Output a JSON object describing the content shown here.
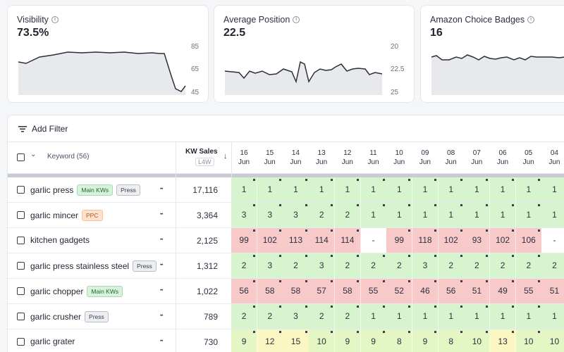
{
  "metrics": [
    {
      "title": "Visibility",
      "value": "73.5%",
      "axis": [
        "85",
        "65",
        "45"
      ]
    },
    {
      "title": "Average Position",
      "value": "22.5",
      "axis": [
        "20",
        "22.5",
        "25"
      ]
    },
    {
      "title": "Amazon Choice Badges",
      "value": "16",
      "axis": []
    }
  ],
  "toolbar": {
    "add_filter_label": "Add Filter"
  },
  "table": {
    "keyword_header": "Keyword (56)",
    "sales_header": "KW Sales",
    "sales_period": "L4W",
    "dates": [
      {
        "day": "16",
        "month": "Jun"
      },
      {
        "day": "15",
        "month": "Jun"
      },
      {
        "day": "14",
        "month": "Jun"
      },
      {
        "day": "13",
        "month": "Jun"
      },
      {
        "day": "12",
        "month": "Jun"
      },
      {
        "day": "11",
        "month": "Jun"
      },
      {
        "day": "10",
        "month": "Jun"
      },
      {
        "day": "09",
        "month": "Jun"
      },
      {
        "day": "08",
        "month": "Jun"
      },
      {
        "day": "07",
        "month": "Jun"
      },
      {
        "day": "06",
        "month": "Jun"
      },
      {
        "day": "05",
        "month": "Jun"
      },
      {
        "day": "04",
        "month": "Jun"
      }
    ],
    "rows": [
      {
        "keyword": "garlic press",
        "tags": [
          {
            "label": "Main KWs",
            "kind": "main"
          },
          {
            "label": "Press",
            "kind": "press"
          }
        ],
        "sales": "17,116",
        "values": [
          "1",
          "1",
          "1",
          "1",
          "1",
          "1",
          "1",
          "1",
          "1",
          "1",
          "1",
          "1",
          "1"
        ],
        "colors": [
          "g",
          "g",
          "g",
          "g",
          "g",
          "g",
          "g",
          "g",
          "g",
          "g",
          "g",
          "g",
          "g"
        ]
      },
      {
        "keyword": "garlic mincer",
        "tags": [
          {
            "label": "PPC",
            "kind": "ppc"
          }
        ],
        "sales": "3,364",
        "values": [
          "3",
          "3",
          "3",
          "2",
          "2",
          "1",
          "1",
          "1",
          "1",
          "1",
          "1",
          "1",
          "1"
        ],
        "colors": [
          "g",
          "g",
          "g",
          "g",
          "g",
          "g",
          "g",
          "g",
          "g",
          "g",
          "g",
          "g",
          "g"
        ]
      },
      {
        "keyword": "kitchen gadgets",
        "tags": [],
        "sales": "2,125",
        "values": [
          "99",
          "102",
          "113",
          "114",
          "114",
          "-",
          "99",
          "118",
          "102",
          "93",
          "102",
          "106",
          "-"
        ],
        "colors": [
          "r",
          "r",
          "r",
          "r",
          "r",
          "w",
          "r",
          "r",
          "r",
          "r",
          "r",
          "r",
          "w"
        ]
      },
      {
        "keyword": "garlic press stainless steel",
        "tags": [
          {
            "label": "Press",
            "kind": "press"
          }
        ],
        "sales": "1,312",
        "values": [
          "2",
          "3",
          "2",
          "3",
          "2",
          "2",
          "2",
          "3",
          "2",
          "2",
          "2",
          "2",
          "2"
        ],
        "colors": [
          "g",
          "g",
          "g",
          "g",
          "g",
          "g",
          "g",
          "g",
          "g",
          "g",
          "g",
          "g",
          "g"
        ]
      },
      {
        "keyword": "garlic chopper",
        "tags": [
          {
            "label": "Main KWs",
            "kind": "main"
          }
        ],
        "sales": "1,022",
        "values": [
          "56",
          "58",
          "58",
          "57",
          "58",
          "55",
          "52",
          "46",
          "56",
          "51",
          "49",
          "55",
          "51"
        ],
        "colors": [
          "r",
          "r",
          "r",
          "r",
          "r",
          "r",
          "r",
          "r",
          "r",
          "r",
          "r",
          "r",
          "r"
        ]
      },
      {
        "keyword": "garlic crusher",
        "tags": [
          {
            "label": "Press",
            "kind": "press"
          }
        ],
        "sales": "789",
        "values": [
          "2",
          "2",
          "3",
          "2",
          "2",
          "1",
          "1",
          "1",
          "1",
          "1",
          "1",
          "1",
          "1"
        ],
        "colors": [
          "g",
          "g",
          "g",
          "g",
          "g",
          "g",
          "g",
          "g",
          "g",
          "g",
          "g",
          "g",
          "g"
        ]
      },
      {
        "keyword": "garlic grater",
        "tags": [],
        "sales": "730",
        "values": [
          "9",
          "12",
          "15",
          "10",
          "9",
          "9",
          "8",
          "9",
          "8",
          "10",
          "13",
          "10",
          "10"
        ],
        "colors": [
          "l",
          "y",
          "y",
          "l",
          "l",
          "l",
          "l",
          "l",
          "l",
          "l",
          "y",
          "l",
          "l"
        ]
      }
    ]
  },
  "colors": {
    "green": "#d6f5cf",
    "red": "#f7c9c9",
    "lime": "#e3f6c3",
    "yellow": "#fbf7c2",
    "accent": "#1f2430"
  }
}
